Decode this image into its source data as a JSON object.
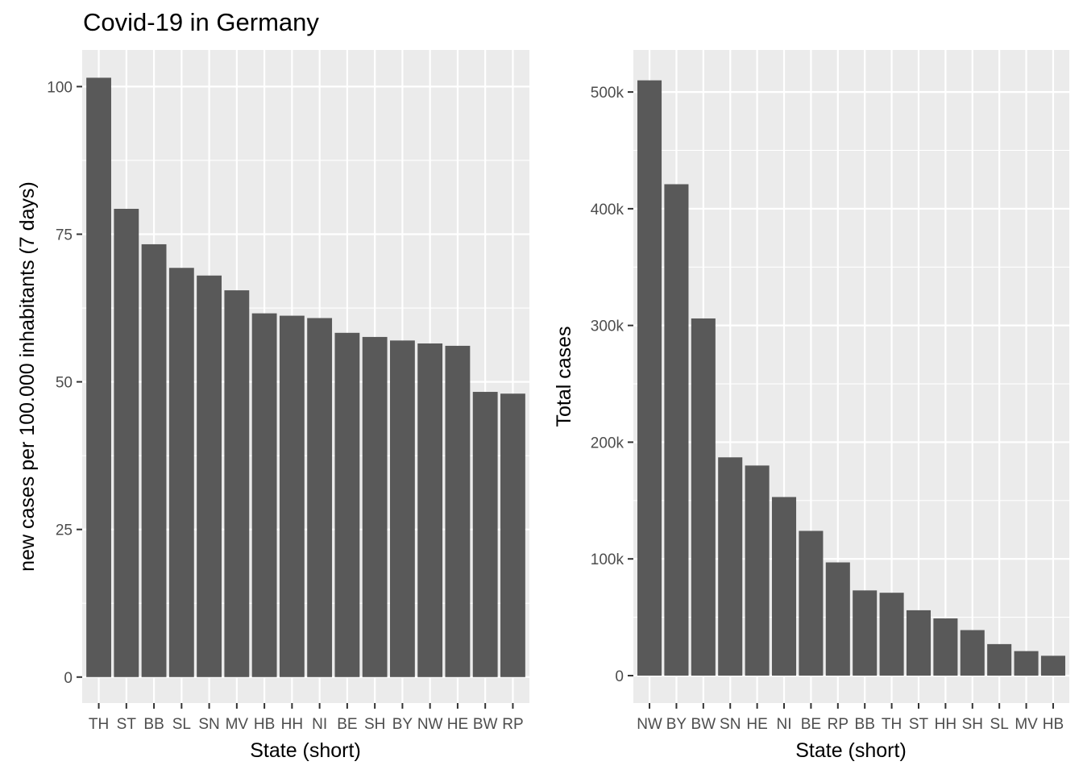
{
  "title": "Covid-19 in Germany",
  "colors": {
    "panel": "#EBEBEB",
    "grid_major": "#FFFFFF",
    "bar": "#595959",
    "tick_text": "#4D4D4D"
  },
  "chart_data": [
    {
      "type": "bar",
      "xlabel": "State (short)",
      "ylabel": "new cases per 100.000 inhabitants (7 days)",
      "categories": [
        "TH",
        "ST",
        "BB",
        "SL",
        "SN",
        "MV",
        "HB",
        "HH",
        "NI",
        "BE",
        "SH",
        "BY",
        "NW",
        "HE",
        "BW",
        "RP"
      ],
      "values": [
        101.5,
        79.3,
        73.3,
        69.3,
        68.0,
        65.5,
        61.6,
        61.2,
        60.8,
        58.3,
        57.6,
        57.0,
        56.5,
        56.1,
        48.3,
        48.0
      ],
      "ylim": [
        -4.4,
        106.2
      ],
      "yticks": [
        0,
        25,
        50,
        75,
        100
      ],
      "ytick_labels": [
        "0",
        "25",
        "50",
        "75",
        "100"
      ],
      "grid": true
    },
    {
      "type": "bar",
      "xlabel": "State (short)",
      "ylabel": "Total cases",
      "categories": [
        "NW",
        "BY",
        "BW",
        "SN",
        "HE",
        "NI",
        "BE",
        "RP",
        "BB",
        "TH",
        "ST",
        "HH",
        "SH",
        "SL",
        "MV",
        "HB"
      ],
      "values": [
        510000,
        421000,
        306000,
        187000,
        180000,
        153000,
        124000,
        97000,
        73000,
        71000,
        56000,
        49000,
        39000,
        27000,
        21000,
        17000
      ],
      "ylim": [
        -23500,
        536000
      ],
      "yticks": [
        0,
        100000,
        200000,
        300000,
        400000,
        500000
      ],
      "ytick_labels": [
        "0",
        "100k",
        "200k",
        "300k",
        "400k",
        "500k"
      ],
      "grid": true
    }
  ]
}
